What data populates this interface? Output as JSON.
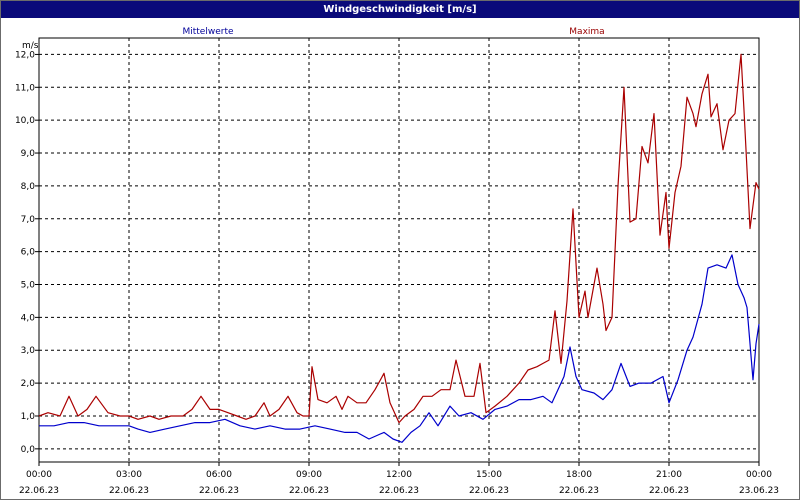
{
  "window": {
    "title": "Windgeschwindigkeit [m/s]"
  },
  "chart_data": {
    "type": "line",
    "title": "Windgeschwindigkeit [m/s]",
    "ylabel": "m/s",
    "ylim": [
      -0.4,
      12.5
    ],
    "xlim_hours": [
      0,
      24
    ],
    "y_ticks": [
      "0,0",
      "1,0",
      "2,0",
      "3,0",
      "4,0",
      "5,0",
      "6,0",
      "7,0",
      "8,0",
      "9,0",
      "10,0",
      "11,0",
      "12,0"
    ],
    "x_ticks": [
      {
        "time": "00:00",
        "date": "22.06.23"
      },
      {
        "time": "03:00",
        "date": "22.06.23"
      },
      {
        "time": "06:00",
        "date": "22.06.23"
      },
      {
        "time": "09:00",
        "date": "22.06.23"
      },
      {
        "time": "12:00",
        "date": "22.06.23"
      },
      {
        "time": "15:00",
        "date": "22.06.23"
      },
      {
        "time": "18:00",
        "date": "22.06.23"
      },
      {
        "time": "21:00",
        "date": "22.06.23"
      },
      {
        "time": "00:00",
        "date": "23.06.23"
      }
    ],
    "grid": true,
    "legend_position": "top",
    "series": [
      {
        "name": "Mittelwerte",
        "color": "#0000cc",
        "points": [
          [
            0.0,
            0.7
          ],
          [
            0.5,
            0.7
          ],
          [
            1.0,
            0.8
          ],
          [
            1.5,
            0.8
          ],
          [
            2.0,
            0.7
          ],
          [
            2.5,
            0.7
          ],
          [
            3.0,
            0.7
          ],
          [
            3.3,
            0.6
          ],
          [
            3.7,
            0.5
          ],
          [
            4.2,
            0.6
          ],
          [
            4.7,
            0.7
          ],
          [
            5.2,
            0.8
          ],
          [
            5.7,
            0.8
          ],
          [
            6.2,
            0.9
          ],
          [
            6.7,
            0.7
          ],
          [
            7.2,
            0.6
          ],
          [
            7.7,
            0.7
          ],
          [
            8.2,
            0.6
          ],
          [
            8.7,
            0.6
          ],
          [
            9.2,
            0.7
          ],
          [
            9.7,
            0.6
          ],
          [
            10.2,
            0.5
          ],
          [
            10.6,
            0.5
          ],
          [
            11.0,
            0.3
          ],
          [
            11.5,
            0.5
          ],
          [
            11.8,
            0.3
          ],
          [
            12.1,
            0.2
          ],
          [
            12.4,
            0.5
          ],
          [
            12.7,
            0.7
          ],
          [
            13.0,
            1.1
          ],
          [
            13.3,
            0.7
          ],
          [
            13.7,
            1.3
          ],
          [
            14.0,
            1.0
          ],
          [
            14.4,
            1.1
          ],
          [
            14.8,
            0.9
          ],
          [
            15.2,
            1.2
          ],
          [
            15.6,
            1.3
          ],
          [
            16.0,
            1.5
          ],
          [
            16.4,
            1.5
          ],
          [
            16.8,
            1.6
          ],
          [
            17.1,
            1.4
          ],
          [
            17.5,
            2.2
          ],
          [
            17.7,
            3.1
          ],
          [
            17.9,
            2.2
          ],
          [
            18.1,
            1.8
          ],
          [
            18.5,
            1.7
          ],
          [
            18.8,
            1.5
          ],
          [
            19.1,
            1.8
          ],
          [
            19.4,
            2.6
          ],
          [
            19.7,
            1.9
          ],
          [
            20.0,
            2.0
          ],
          [
            20.4,
            2.0
          ],
          [
            20.8,
            2.2
          ],
          [
            21.0,
            1.4
          ],
          [
            21.3,
            2.1
          ],
          [
            21.6,
            3.0
          ],
          [
            21.8,
            3.4
          ],
          [
            22.1,
            4.4
          ],
          [
            22.3,
            5.5
          ],
          [
            22.6,
            5.6
          ],
          [
            22.9,
            5.5
          ],
          [
            23.1,
            5.9
          ],
          [
            23.3,
            5.0
          ],
          [
            23.5,
            4.6
          ],
          [
            23.6,
            4.3
          ],
          [
            23.8,
            2.1
          ],
          [
            23.9,
            3.2
          ],
          [
            24.0,
            3.8
          ]
        ]
      },
      {
        "name": "Maxima",
        "color": "#aa0000",
        "points": [
          [
            0.0,
            1.0
          ],
          [
            0.3,
            1.1
          ],
          [
            0.7,
            1.0
          ],
          [
            1.0,
            1.6
          ],
          [
            1.3,
            1.0
          ],
          [
            1.6,
            1.2
          ],
          [
            1.9,
            1.6
          ],
          [
            2.3,
            1.1
          ],
          [
            2.7,
            1.0
          ],
          [
            3.0,
            1.0
          ],
          [
            3.3,
            0.9
          ],
          [
            3.7,
            1.0
          ],
          [
            4.0,
            0.9
          ],
          [
            4.4,
            1.0
          ],
          [
            4.8,
            1.0
          ],
          [
            5.1,
            1.2
          ],
          [
            5.4,
            1.6
          ],
          [
            5.7,
            1.2
          ],
          [
            6.0,
            1.2
          ],
          [
            6.3,
            1.1
          ],
          [
            6.6,
            1.0
          ],
          [
            6.9,
            0.9
          ],
          [
            7.2,
            1.0
          ],
          [
            7.5,
            1.4
          ],
          [
            7.7,
            1.0
          ],
          [
            8.0,
            1.2
          ],
          [
            8.3,
            1.6
          ],
          [
            8.6,
            1.1
          ],
          [
            8.8,
            1.0
          ],
          [
            9.0,
            1.0
          ],
          [
            9.1,
            2.5
          ],
          [
            9.3,
            1.5
          ],
          [
            9.6,
            1.4
          ],
          [
            9.9,
            1.6
          ],
          [
            10.1,
            1.2
          ],
          [
            10.3,
            1.6
          ],
          [
            10.6,
            1.4
          ],
          [
            10.9,
            1.4
          ],
          [
            11.2,
            1.8
          ],
          [
            11.5,
            2.3
          ],
          [
            11.7,
            1.4
          ],
          [
            12.0,
            0.8
          ],
          [
            12.2,
            1.0
          ],
          [
            12.5,
            1.2
          ],
          [
            12.8,
            1.6
          ],
          [
            13.1,
            1.6
          ],
          [
            13.4,
            1.8
          ],
          [
            13.7,
            1.8
          ],
          [
            13.9,
            2.7
          ],
          [
            14.2,
            1.6
          ],
          [
            14.5,
            1.6
          ],
          [
            14.7,
            2.6
          ],
          [
            14.9,
            1.1
          ],
          [
            15.2,
            1.3
          ],
          [
            15.6,
            1.6
          ],
          [
            16.0,
            2.0
          ],
          [
            16.3,
            2.4
          ],
          [
            16.6,
            2.5
          ],
          [
            16.8,
            2.6
          ],
          [
            17.0,
            2.7
          ],
          [
            17.2,
            4.2
          ],
          [
            17.4,
            2.6
          ],
          [
            17.6,
            4.5
          ],
          [
            17.8,
            7.3
          ],
          [
            18.0,
            4.0
          ],
          [
            18.2,
            4.8
          ],
          [
            18.3,
            4.0
          ],
          [
            18.6,
            5.5
          ],
          [
            18.8,
            4.4
          ],
          [
            18.9,
            3.6
          ],
          [
            19.1,
            4.0
          ],
          [
            19.3,
            8.0
          ],
          [
            19.5,
            11.0
          ],
          [
            19.7,
            6.9
          ],
          [
            19.9,
            7.0
          ],
          [
            20.1,
            9.2
          ],
          [
            20.3,
            8.7
          ],
          [
            20.5,
            10.2
          ],
          [
            20.7,
            6.5
          ],
          [
            20.9,
            7.8
          ],
          [
            21.0,
            6.1
          ],
          [
            21.2,
            7.8
          ],
          [
            21.4,
            8.6
          ],
          [
            21.6,
            10.7
          ],
          [
            21.8,
            10.2
          ],
          [
            21.9,
            9.8
          ],
          [
            22.1,
            10.8
          ],
          [
            22.3,
            11.4
          ],
          [
            22.4,
            10.1
          ],
          [
            22.6,
            10.5
          ],
          [
            22.8,
            9.1
          ],
          [
            23.0,
            10.0
          ],
          [
            23.2,
            10.2
          ],
          [
            23.4,
            12.0
          ],
          [
            23.5,
            10.3
          ],
          [
            23.7,
            6.7
          ],
          [
            23.9,
            8.1
          ],
          [
            24.0,
            7.9
          ]
        ]
      }
    ]
  }
}
